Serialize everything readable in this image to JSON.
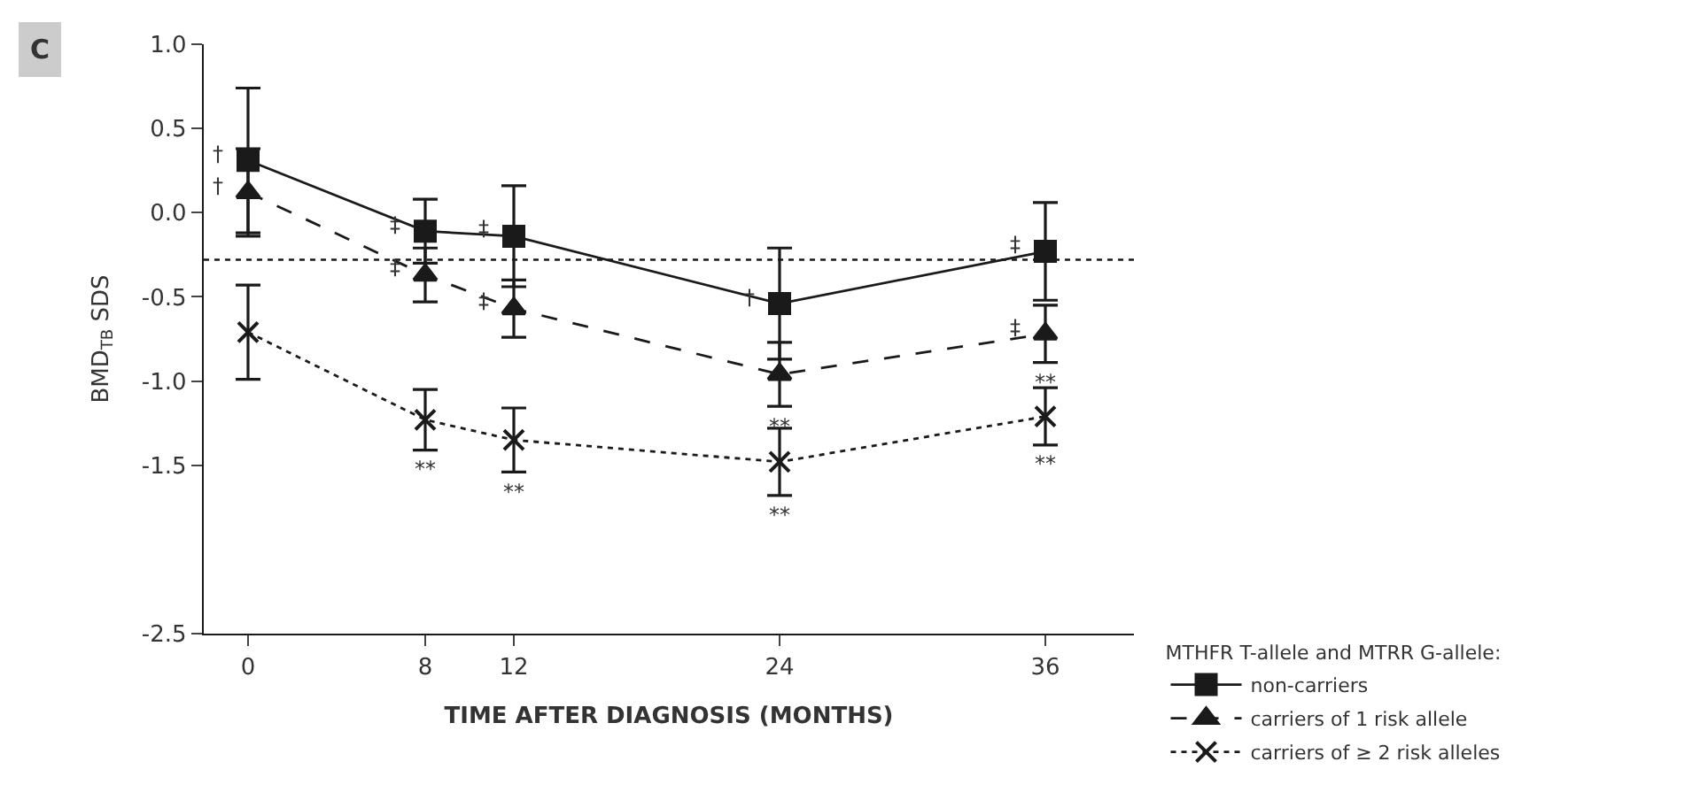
{
  "chart_data": {
    "type": "line",
    "title": "C",
    "xlabel": "TIME AFTER DIAGNOSIS (MONTHS)",
    "ylabel": "BMD$_{TB}$ SDS",
    "legend_title": "MTHFR T-allele and MTRR G-allele:",
    "x": [
      0,
      8,
      12,
      24,
      36
    ],
    "series": [
      {
        "name": "non-carriers",
        "color": "#1a1a1a",
        "marker": "square",
        "line_style": "solid",
        "values": [
          0.31,
          -0.11,
          -0.14,
          -0.54,
          -0.23
        ],
        "errors": [
          0.43,
          0.19,
          0.3,
          0.33,
          0.29
        ]
      },
      {
        "name": "carriers of 1 risk allele",
        "color": "#1a1a1a",
        "marker": "triangle",
        "line_style": "dashed",
        "values": [
          0.12,
          -0.37,
          -0.57,
          -0.96,
          -0.72
        ],
        "errors": [
          0.26,
          0.16,
          0.17,
          0.19,
          0.17
        ]
      },
      {
        "name": "carriers of ≥ 2 risk alleles",
        "color": "#1a1a1a",
        "marker": "cross",
        "line_style": "dotted",
        "values": [
          -0.71,
          -1.23,
          -1.35,
          -1.48,
          -1.21
        ],
        "errors": [
          0.28,
          0.18,
          0.19,
          0.2,
          0.17
        ]
      }
    ],
    "xlim": [
      -2,
      40
    ],
    "xticks": [
      0,
      8,
      12,
      24,
      36
    ],
    "ylim": [
      -2.5,
      1.0
    ],
    "yticks": [
      {
        "value": 1.0,
        "label": "1.0"
      },
      0.5,
      {
        "value": 0.0,
        "label": "0.0"
      },
      -0.5,
      {
        "value": -1.0,
        "label": "-1.0"
      },
      -1.5,
      -2.5
    ],
    "ref_lines": [
      {
        "axis": "y",
        "value": -0.28,
        "line_style": "dotted",
        "color": "#1a1a1a"
      }
    ],
    "annotations": [
      {
        "text": "†",
        "x": 0,
        "y": 0.31
      },
      {
        "text": "†",
        "x": 0,
        "y": 0.12
      },
      {
        "text": "‡",
        "x": 8,
        "y": -0.11
      },
      {
        "text": "‡",
        "x": 8,
        "y": -0.37
      },
      {
        "text": "‡",
        "x": 12,
        "y": -0.14
      },
      {
        "text": "‡",
        "x": 12,
        "y": -0.57
      },
      {
        "text": "†",
        "x": 24,
        "y": -0.54
      },
      {
        "text": "‡",
        "x": 36,
        "y": -0.23
      },
      {
        "text": "‡",
        "x": 36,
        "y": -0.72
      },
      {
        "text": "**",
        "x": 8,
        "y": -1.41
      },
      {
        "text": "**",
        "x": 12,
        "y": -1.54
      },
      {
        "text": "**",
        "x": 24,
        "y": -1.15
      },
      {
        "text": "**",
        "x": 24,
        "y": -1.68
      },
      {
        "text": "**",
        "x": 36,
        "y": -0.89
      },
      {
        "text": "**",
        "x": 36,
        "y": -1.38
      }
    ],
    "legend": "bottom right"
  }
}
